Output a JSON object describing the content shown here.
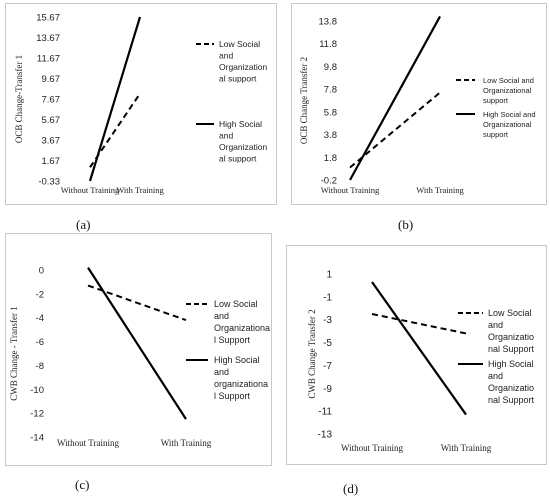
{
  "panel_labels": [
    "(a)",
    "(b)",
    "(c)",
    "(d)"
  ],
  "chart_data": [
    {
      "type": "line",
      "title": "",
      "xlabel": "",
      "ylabel": "OCB Change-Transfer 1",
      "categories": [
        "Without Training",
        "With Training"
      ],
      "yticks": [
        "-0.33",
        "1.67",
        "3.67",
        "5.67",
        "7.67",
        "9.67",
        "11.67",
        "13.67",
        "15.67"
      ],
      "ylim": [
        -0.33,
        15.67
      ],
      "grid": false,
      "legend_position": "right",
      "series": [
        {
          "name": "Low Social and Organization al support",
          "style": "dashed",
          "values": [
            1.0,
            8.2
          ]
        },
        {
          "name": "High Social and Organization al support",
          "style": "solid",
          "values": [
            -0.33,
            15.67
          ]
        }
      ]
    },
    {
      "type": "line",
      "title": "",
      "xlabel": "",
      "ylabel": "OCB Change Transfer 2",
      "categories": [
        "Without Training",
        "With Training"
      ],
      "yticks": [
        "-0.2",
        "1.8",
        "3.8",
        "5.8",
        "7.8",
        "9.8",
        "11.8",
        "13.8"
      ],
      "ylim": [
        -0.2,
        13.8
      ],
      "grid": false,
      "legend_position": "right",
      "series": [
        {
          "name": "Low Social and Organizational support",
          "style": "dashed",
          "values": [
            0.9,
            7.5
          ]
        },
        {
          "name": "High Social and Organizational support",
          "style": "solid",
          "values": [
            -0.2,
            14.2
          ]
        }
      ]
    },
    {
      "type": "line",
      "title": "",
      "xlabel": "",
      "ylabel": "CWB Change - Transfer 1",
      "categories": [
        "Without Training",
        "With Training"
      ],
      "yticks": [
        "-14",
        "-12",
        "-10",
        "-8",
        "-6",
        "-4",
        "-2",
        "0"
      ],
      "ylim": [
        -14,
        0
      ],
      "grid": false,
      "legend_position": "right",
      "series": [
        {
          "name": "Low Social and Organizationa l Support",
          "style": "dashed",
          "values": [
            -1.3,
            -4.2
          ]
        },
        {
          "name": "High Social and organizationa l Support",
          "style": "solid",
          "values": [
            0.2,
            -12.5
          ]
        }
      ]
    },
    {
      "type": "line",
      "title": "",
      "xlabel": "",
      "ylabel": "CWB Change Transfer 2",
      "categories": [
        "Without Training",
        "With Training"
      ],
      "yticks": [
        "-13",
        "-11",
        "-9",
        "-7",
        "-5",
        "-3",
        "-1",
        "1"
      ],
      "ylim": [
        -13,
        1
      ],
      "grid": false,
      "legend_position": "right",
      "series": [
        {
          "name": "Low Social and Organizatio nal Support",
          "style": "dashed",
          "values": [
            -2.5,
            -4.2
          ]
        },
        {
          "name": "High Social and Organizatio nal Support",
          "style": "solid",
          "values": [
            0.3,
            -11.3
          ]
        }
      ]
    }
  ]
}
